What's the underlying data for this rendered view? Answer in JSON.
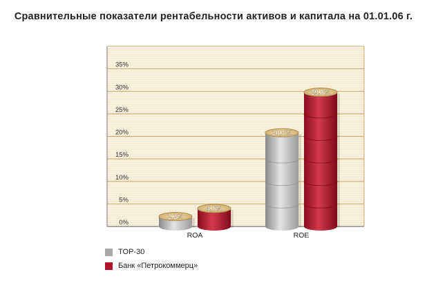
{
  "chart_data": {
    "type": "bar",
    "title": "Сравнительные показатели рентабельности активов и капитала на 01.01.06 г.",
    "xlabel": "",
    "ylabel": "",
    "categories": [
      "ROA",
      "ROE"
    ],
    "ylim": [
      0,
      40
    ],
    "yticks": [
      "0%",
      "5%",
      "10%",
      "15%",
      "20%",
      "25%",
      "30%",
      "35%"
    ],
    "grid": true,
    "legend_position": "bottom-left",
    "series": [
      {
        "name": "TOP-30",
        "values": [
          2.2,
          20.8
        ],
        "labels": [
          "2,2%",
          "20,8%"
        ],
        "color": "#a9a9a9"
      },
      {
        "name": "Банк «Петрокоммерц»",
        "values": [
          4.0,
          29.8
        ],
        "labels": [
          "4,0%",
          "29,8%"
        ],
        "color": "#b0132a"
      }
    ]
  },
  "colors": {
    "plot_background": "#fcf3e2",
    "grid": "#caa86c",
    "axis": "#7a7a7a"
  }
}
